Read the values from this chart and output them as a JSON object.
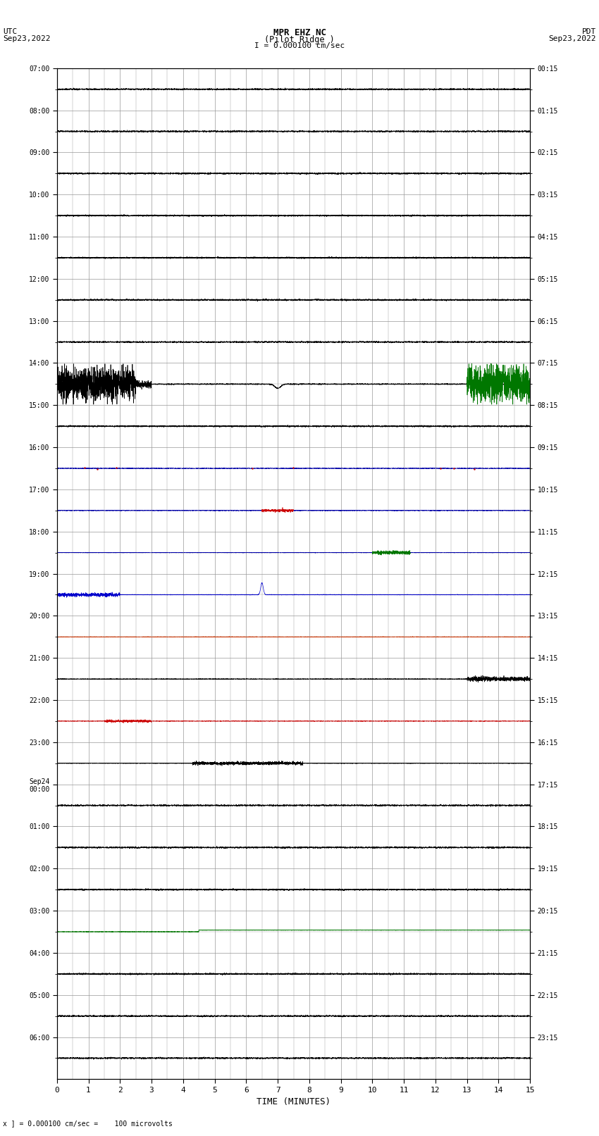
{
  "title_line1": "MPR EHZ NC",
  "title_line2": "(Pilot Ridge )",
  "title_scale": "I = 0.000100 cm/sec",
  "left_header_line1": "UTC",
  "left_header_line2": "Sep23,2022",
  "right_header_line1": "PDT",
  "right_header_line2": "Sep23,2022",
  "footer_note": "x ] = 0.000100 cm/sec =    100 microvolts",
  "xlabel": "TIME (MINUTES)",
  "bg_color": "#ffffff",
  "grid_color": "#999999",
  "num_rows": 24,
  "left_times_major": [
    "07:00",
    "08:00",
    "09:00",
    "10:00",
    "11:00",
    "12:00",
    "13:00",
    "14:00",
    "15:00",
    "16:00",
    "17:00",
    "18:00",
    "19:00",
    "20:00",
    "21:00",
    "22:00",
    "23:00",
    "Sep24\n00:00",
    "01:00",
    "02:00",
    "03:00",
    "04:00",
    "05:00",
    "06:00"
  ],
  "right_times_major": [
    "00:15",
    "01:15",
    "02:15",
    "03:15",
    "04:15",
    "05:15",
    "06:15",
    "07:15",
    "08:15",
    "09:15",
    "10:15",
    "11:15",
    "12:15",
    "13:15",
    "14:15",
    "15:15",
    "16:15",
    "17:15",
    "18:15",
    "19:15",
    "20:15",
    "21:15",
    "22:15",
    "23:15"
  ]
}
